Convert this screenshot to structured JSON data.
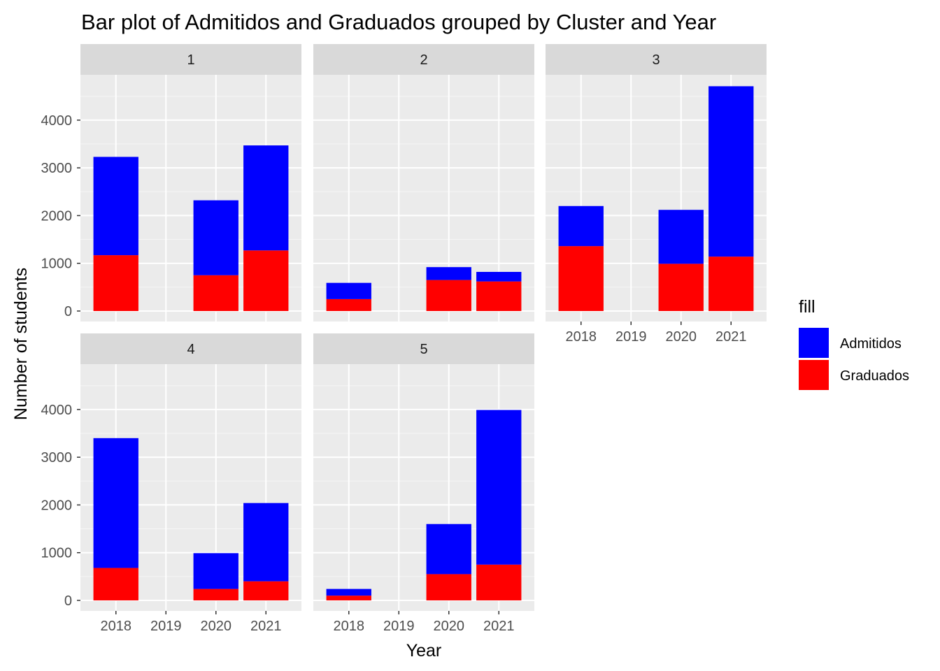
{
  "chart_data": {
    "type": "bar",
    "stacked": true,
    "faceted": true,
    "title": "Bar plot of Admitidos and Graduados grouped by Cluster and Year",
    "xlabel": "Year",
    "ylabel": "Number of students",
    "categories": [
      "2018",
      "2019",
      "2020",
      "2021"
    ],
    "y_ticks": [
      0,
      1000,
      2000,
      3000,
      4000
    ],
    "ylim": [
      -220,
      4950
    ],
    "grid": true,
    "legend": {
      "title": "fill",
      "position": "right",
      "items": [
        {
          "label": "Admitidos",
          "color": "#0000FF"
        },
        {
          "label": "Graduados",
          "color": "#FF0000"
        }
      ]
    },
    "colors": {
      "Admitidos": "#0000FF",
      "Graduados": "#FF0000"
    },
    "facets": [
      {
        "label": "1",
        "series": [
          {
            "name": "Graduados",
            "values": [
              1170,
              0,
              750,
              1270
            ]
          },
          {
            "name": "Admitidos",
            "values": [
              2060,
              0,
              1570,
              2200
            ]
          }
        ]
      },
      {
        "label": "2",
        "series": [
          {
            "name": "Graduados",
            "values": [
              250,
              0,
              650,
              620
            ]
          },
          {
            "name": "Admitidos",
            "values": [
              340,
              0,
              270,
              200
            ]
          }
        ]
      },
      {
        "label": "3",
        "series": [
          {
            "name": "Graduados",
            "values": [
              1360,
              0,
              990,
              1140
            ]
          },
          {
            "name": "Admitidos",
            "values": [
              840,
              0,
              1130,
              3570
            ]
          }
        ]
      },
      {
        "label": "4",
        "series": [
          {
            "name": "Graduados",
            "values": [
              680,
              0,
              240,
              400
            ]
          },
          {
            "name": "Admitidos",
            "values": [
              2720,
              0,
              750,
              1640
            ]
          }
        ]
      },
      {
        "label": "5",
        "series": [
          {
            "name": "Graduados",
            "values": [
              100,
              0,
              550,
              750
            ]
          },
          {
            "name": "Admitidos",
            "values": [
              140,
              0,
              1050,
              3240
            ]
          }
        ]
      }
    ]
  }
}
